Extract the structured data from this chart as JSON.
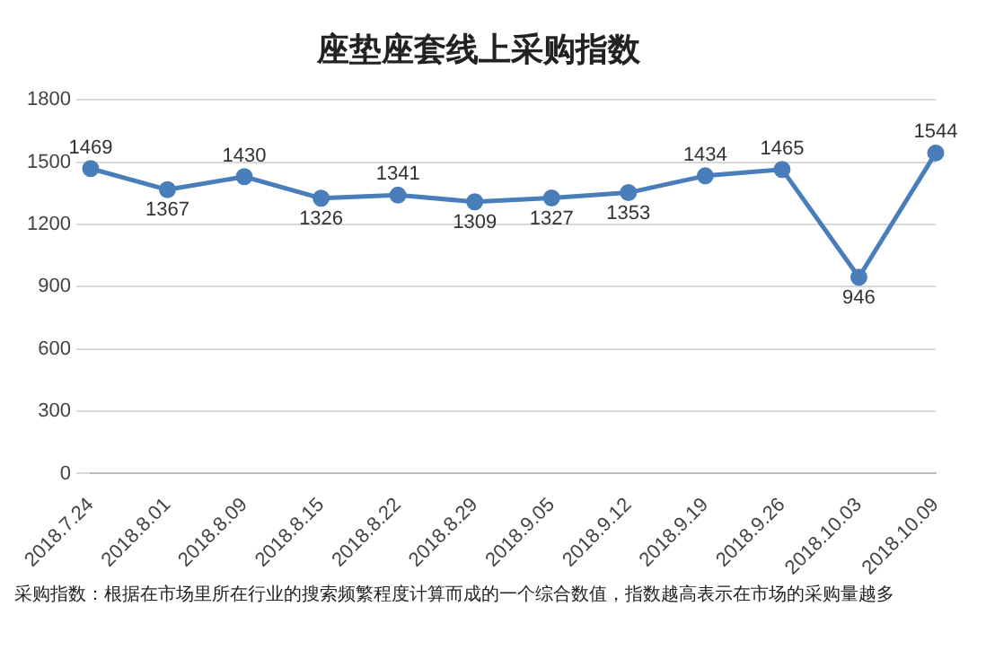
{
  "chart_data": {
    "type": "line",
    "title": "座垫座套线上采购指数",
    "categories": [
      "2018.7.24",
      "2018.8.01",
      "2018.8.09",
      "2018.8.15",
      "2018.8.22",
      "2018.8.29",
      "2018.9.05",
      "2018.9.12",
      "2018.9.19",
      "2018.9.26",
      "2018.10.03",
      "2018.10.09"
    ],
    "series": [
      {
        "color": "#4a7ebb",
        "values": [
          1469,
          1367,
          1430,
          1326,
          1341,
          1309,
          1327,
          1353,
          1434,
          1465,
          946,
          1544
        ]
      }
    ],
    "ylim": [
      0,
      1800
    ],
    "yticks": [
      0,
      300,
      600,
      900,
      1200,
      1500,
      1800
    ],
    "grid": "y",
    "marker": "circle",
    "line_style": "solid",
    "data_labels": true,
    "legend": false,
    "annotations": [
      "采购指数：根据在市场里所在行业的搜索频繁程度计算而成的一个综合数值，指数越高表示在市场的采购量越多"
    ]
  }
}
